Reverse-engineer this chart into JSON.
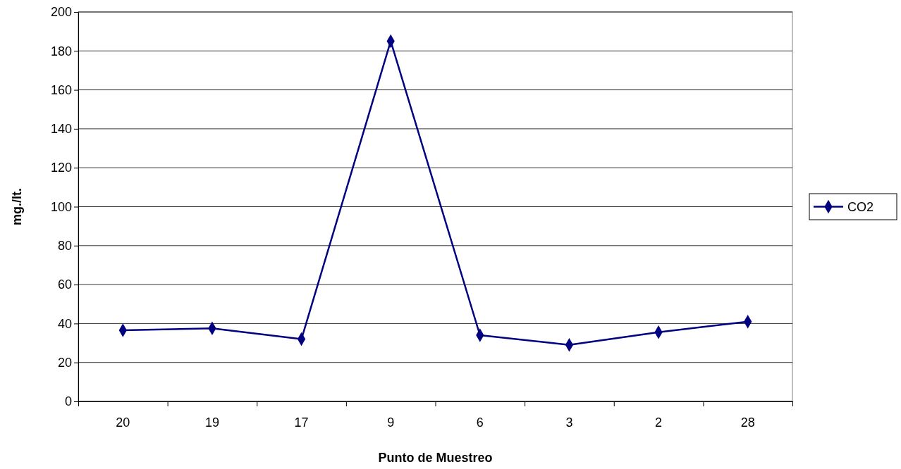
{
  "chart_data": {
    "type": "line",
    "xlabel": "Punto de Muestreo",
    "ylabel": "mg./lt.",
    "categories": [
      "20",
      "19",
      "17",
      "9",
      "6",
      "3",
      "2",
      "28"
    ],
    "series": [
      {
        "name": "CO2",
        "color": "#000080",
        "values": [
          36.5,
          37.5,
          32,
          185,
          34,
          29,
          35.5,
          41
        ]
      }
    ],
    "ylim": [
      0,
      200
    ],
    "yticks": [
      0,
      20,
      40,
      60,
      80,
      100,
      120,
      140,
      160,
      180,
      200
    ],
    "grid": "y",
    "legend": "right",
    "marker": "diamond",
    "line_style": "solid"
  }
}
